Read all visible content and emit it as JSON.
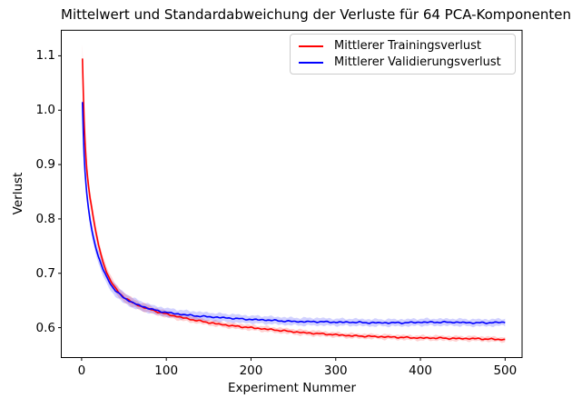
{
  "figure": {
    "title": "Mittelwert und Standardabweichung der Verluste für 64 PCA-Komponenten",
    "xlabel": "Experiment Nummer",
    "ylabel": "Verlust"
  },
  "legend": {
    "entries": [
      {
        "label": "Mittlerer Trainingsverlust",
        "color": "#ff0000"
      },
      {
        "label": "Mittlerer Validierungsverlust",
        "color": "#0000ff"
      }
    ]
  },
  "chart_data": {
    "type": "line",
    "title": "Mittelwert und Standardabweichung der Verluste für 64 PCA-Komponenten",
    "xlabel": "Experiment Nummer",
    "ylabel": "Verlust",
    "grid": false,
    "legend_position": "upper right",
    "x_ticks": [
      0,
      100,
      200,
      300,
      400,
      500
    ],
    "y_ticks": [
      0.6,
      0.7,
      0.8,
      0.9,
      1.0,
      1.1
    ],
    "xlim": [
      -24,
      520
    ],
    "ylim": [
      0.545,
      1.147
    ],
    "band_alpha": 0.18,
    "x": [
      1,
      2,
      3,
      4,
      5,
      6,
      8,
      10,
      12,
      14,
      16,
      18,
      20,
      25,
      30,
      35,
      40,
      45,
      50,
      60,
      70,
      80,
      90,
      100,
      120,
      140,
      160,
      180,
      200,
      220,
      240,
      260,
      280,
      300,
      320,
      340,
      360,
      380,
      400,
      420,
      440,
      460,
      480,
      500
    ],
    "series": [
      {
        "name": "Mittlerer Trainingsverlust",
        "color": "#ff0000",
        "mean": [
          1.095,
          1.03,
          0.98,
          0.945,
          0.915,
          0.893,
          0.862,
          0.838,
          0.82,
          0.8,
          0.783,
          0.767,
          0.752,
          0.722,
          0.7,
          0.684,
          0.672,
          0.663,
          0.656,
          0.646,
          0.639,
          0.634,
          0.629,
          0.625,
          0.618,
          0.612,
          0.607,
          0.603,
          0.6,
          0.597,
          0.594,
          0.591,
          0.589,
          0.587,
          0.585,
          0.584,
          0.583,
          0.582,
          0.581,
          0.581,
          0.58,
          0.58,
          0.579,
          0.578
        ],
        "std": [
          0.027,
          0.025,
          0.023,
          0.021,
          0.019,
          0.018,
          0.016,
          0.014,
          0.013,
          0.012,
          0.012,
          0.011,
          0.011,
          0.01,
          0.01,
          0.009,
          0.009,
          0.009,
          0.008,
          0.008,
          0.007,
          0.007,
          0.006,
          0.006,
          0.006,
          0.005,
          0.005,
          0.005,
          0.005,
          0.005,
          0.005,
          0.005,
          0.005,
          0.0045,
          0.0045,
          0.0045,
          0.0045,
          0.0045,
          0.0045,
          0.0045,
          0.0045,
          0.0045,
          0.0045,
          0.0045
        ]
      },
      {
        "name": "Mittlerer Validierungsverlust",
        "color": "#0000ff",
        "mean": [
          1.015,
          0.955,
          0.915,
          0.888,
          0.866,
          0.848,
          0.82,
          0.798,
          0.78,
          0.765,
          0.752,
          0.74,
          0.73,
          0.708,
          0.692,
          0.678,
          0.668,
          0.661,
          0.655,
          0.646,
          0.64,
          0.635,
          0.631,
          0.628,
          0.624,
          0.621,
          0.619,
          0.617,
          0.615,
          0.614,
          0.612,
          0.611,
          0.611,
          0.61,
          0.61,
          0.609,
          0.609,
          0.609,
          0.61,
          0.61,
          0.61,
          0.609,
          0.609,
          0.61
        ],
        "std": [
          0.01,
          0.01,
          0.01,
          0.01,
          0.011,
          0.011,
          0.011,
          0.012,
          0.012,
          0.012,
          0.012,
          0.012,
          0.012,
          0.012,
          0.012,
          0.011,
          0.011,
          0.01,
          0.01,
          0.009,
          0.009,
          0.008,
          0.008,
          0.008,
          0.008,
          0.008,
          0.0075,
          0.0075,
          0.007,
          0.007,
          0.007,
          0.007,
          0.007,
          0.0065,
          0.0065,
          0.0065,
          0.0065,
          0.0065,
          0.0065,
          0.0065,
          0.0065,
          0.0065,
          0.0065,
          0.0065
        ]
      }
    ]
  }
}
